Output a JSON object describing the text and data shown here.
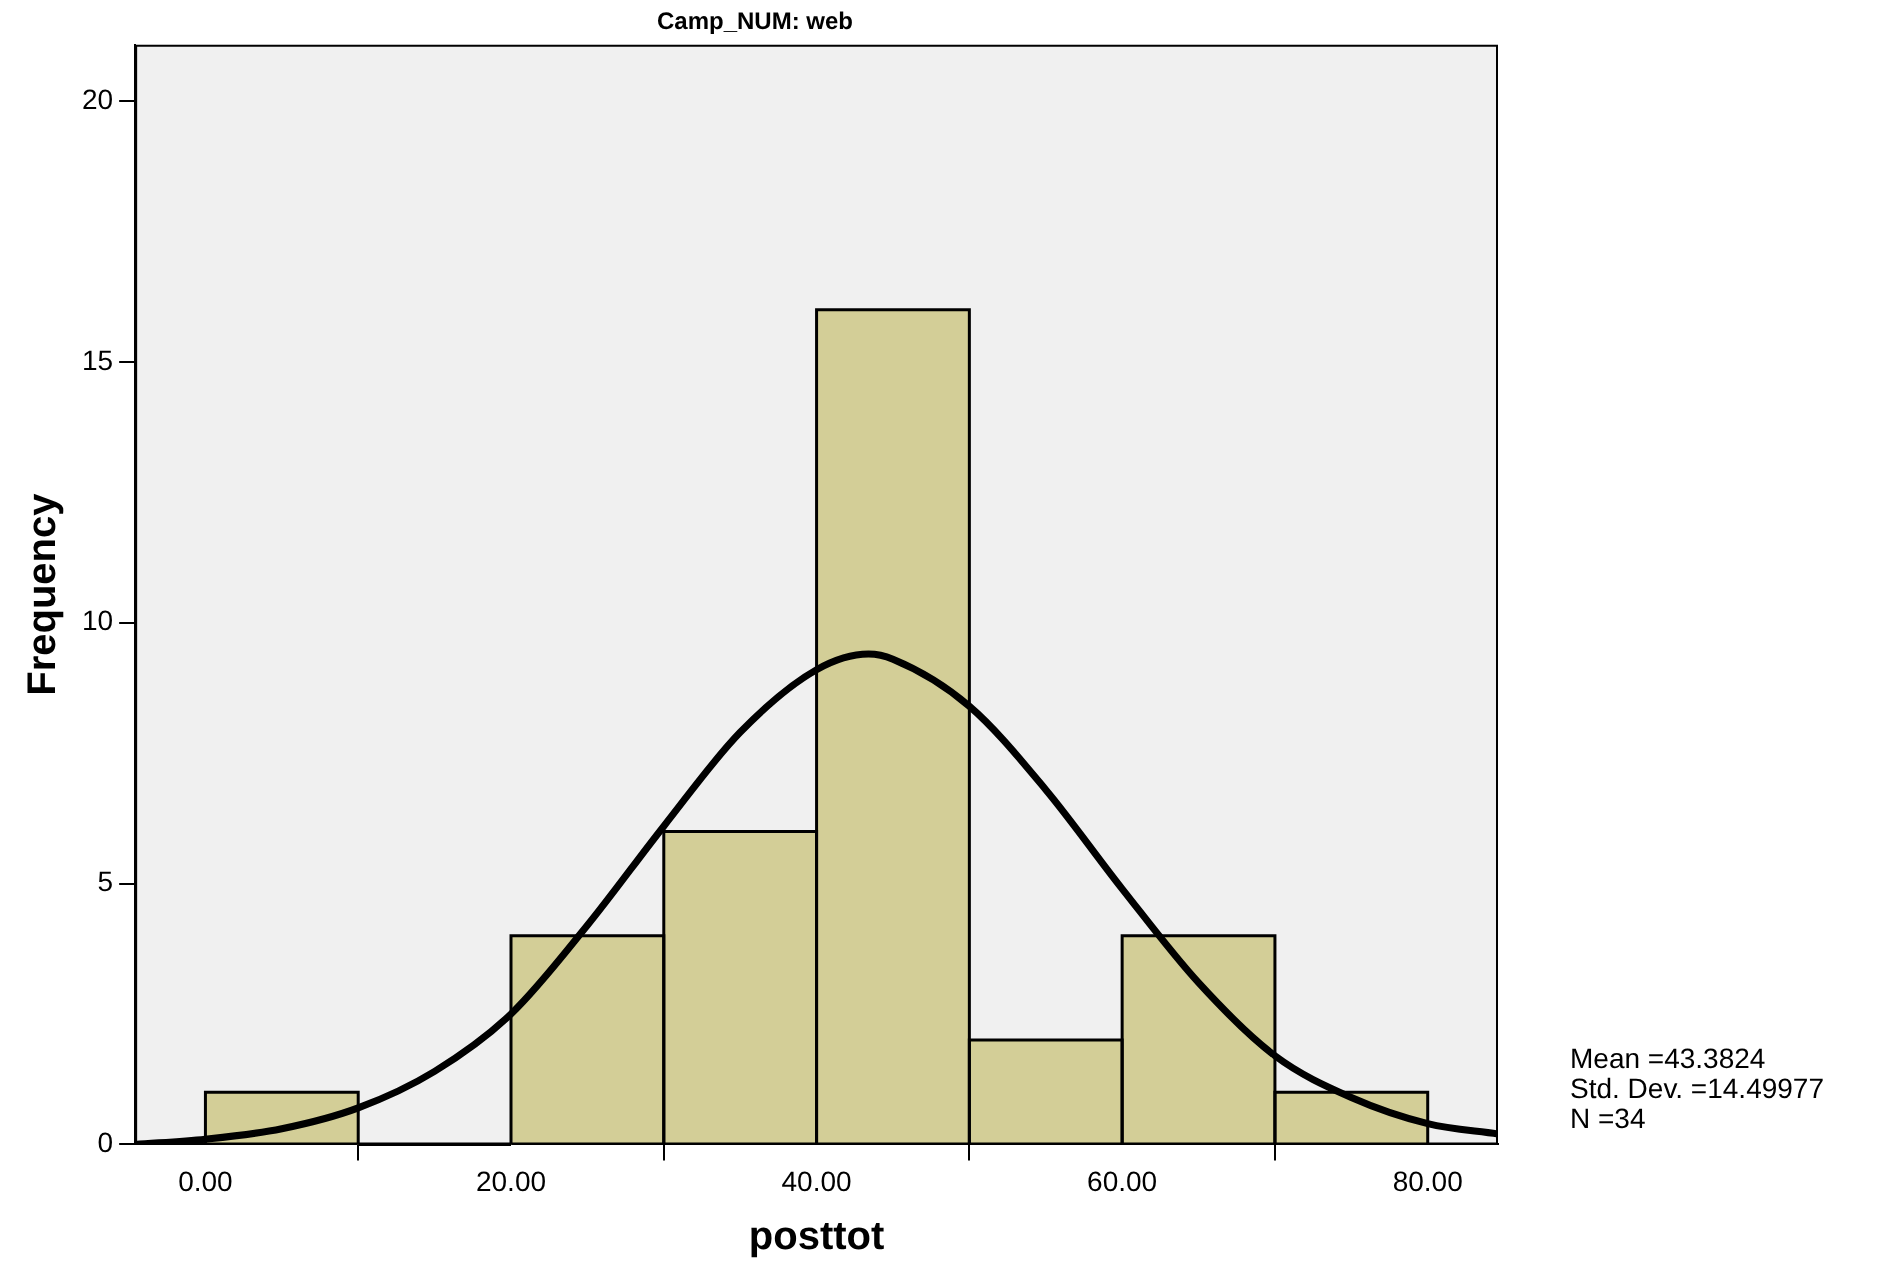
{
  "chart_data": {
    "type": "histogram",
    "title": "Camp_NUM: web",
    "xlabel": "posttot",
    "ylabel": "Frequency",
    "bins": [
      0,
      10,
      20,
      30,
      40,
      50,
      60,
      70,
      80
    ],
    "values": [
      1,
      0,
      4,
      6,
      16,
      2,
      4,
      1
    ],
    "color": "#d3ce97",
    "series": [
      {
        "type": "line",
        "color": "#000000",
        "x": [
          -4.6,
          0,
          5,
          10,
          15,
          20,
          25,
          30,
          35,
          40,
          43.4,
          45,
          50,
          55,
          60,
          65,
          70,
          75,
          80,
          84.6
        ],
        "values": [
          0.0,
          0.1,
          0.3,
          0.7,
          1.4,
          2.5,
          4.2,
          6.1,
          7.9,
          9.1,
          9.4,
          9.3,
          8.4,
          6.8,
          4.9,
          3.1,
          1.7,
          0.9,
          0.4,
          0.2
        ]
      }
    ],
    "xlim": [
      -4.6,
      84.6
    ],
    "xticks": [
      {
        "value": 0,
        "label": "0.00"
      },
      {
        "value": 20,
        "label": "20.00"
      },
      {
        "value": 40,
        "label": "40.00"
      },
      {
        "value": 60,
        "label": "60.00"
      },
      {
        "value": 80,
        "label": "80.00"
      }
    ],
    "ylim": [
      0,
      21.08
    ],
    "yticks": [
      0,
      5,
      10,
      15,
      20
    ],
    "marker": "none",
    "grid": false,
    "legend": false,
    "annotations": [
      "Mean =43.3824",
      "Std. Dev. =14.49977",
      "N =34"
    ]
  }
}
